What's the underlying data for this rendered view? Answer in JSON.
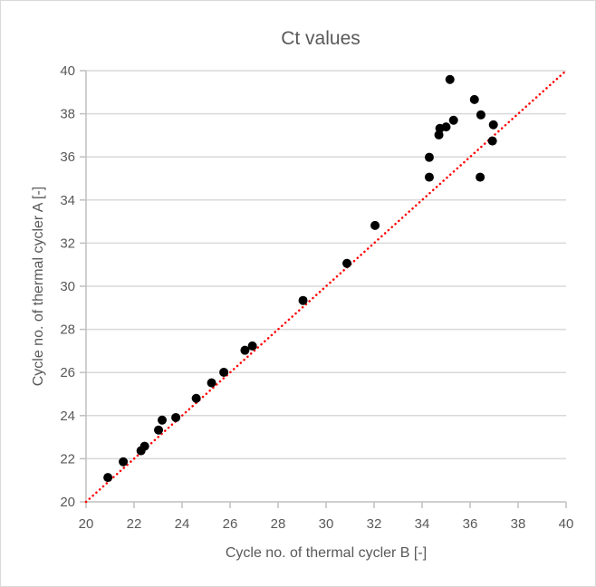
{
  "chart_data": {
    "type": "scatter",
    "title": "Ct values",
    "xlabel": "Cycle no. of thermal cycler B [-]",
    "ylabel": "Cycle no. of thermal cycler A [-]",
    "xlim": [
      20,
      40
    ],
    "ylim": [
      20,
      40
    ],
    "xticks": [
      "20",
      "22",
      "24",
      "26",
      "28",
      "30",
      "32",
      "34",
      "36",
      "38",
      "40"
    ],
    "yticks": [
      "20",
      "22",
      "24",
      "26",
      "28",
      "30",
      "32",
      "34",
      "36",
      "38",
      "40"
    ],
    "grid": "horizontal",
    "legend": "none",
    "series": [
      {
        "name": "Ct values",
        "color": "#000000",
        "x": [
          20.91,
          21.55,
          22.29,
          22.44,
          23.02,
          23.17,
          23.74,
          24.59,
          25.23,
          25.74,
          26.62,
          26.93,
          29.04,
          30.87,
          32.04,
          34.3,
          34.3,
          34.7,
          34.74,
          35.0,
          35.16,
          35.31,
          36.18,
          36.42,
          36.45,
          36.93,
          36.97
        ],
        "y": [
          21.13,
          21.86,
          22.37,
          22.58,
          23.33,
          23.79,
          23.91,
          24.8,
          25.52,
          26.01,
          27.03,
          27.23,
          29.34,
          31.06,
          32.82,
          35.06,
          35.98,
          37.02,
          37.32,
          37.39,
          39.59,
          37.7,
          38.66,
          35.06,
          37.95,
          36.74,
          37.49
        ]
      }
    ],
    "reference_line": {
      "name": "y = x",
      "x": [
        20,
        40
      ],
      "y": [
        20,
        40
      ],
      "color": "#ff0000",
      "style": "dotted"
    }
  }
}
